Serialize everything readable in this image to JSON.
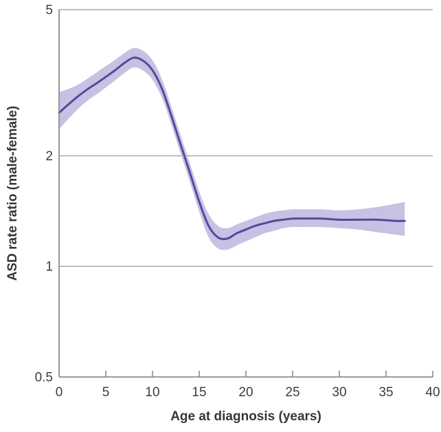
{
  "figure": {
    "background": "#ffffff"
  },
  "chart_data": {
    "type": "line",
    "title": "",
    "xlabel": "Age at diagnosis (years)",
    "ylabel": "ASD rate ratio (male-female)",
    "x_ticks": [
      0,
      5,
      10,
      15,
      20,
      25,
      30,
      35,
      40
    ],
    "x_tick_labels": [
      "0",
      "5",
      "10",
      "15",
      "20",
      "25",
      "30",
      "35",
      "40"
    ],
    "y_ticks": [
      0.5,
      1,
      2,
      5
    ],
    "y_tick_labels": [
      "0.5",
      "1",
      "2",
      "5"
    ],
    "gridline_values": [
      1,
      2,
      5
    ],
    "xlim": [
      0,
      40
    ],
    "ylim": [
      0.5,
      5
    ],
    "y_scale": "log",
    "grid": "horizontal-only",
    "legend": "none",
    "series": [
      {
        "name": "ASD male-female rate ratio (smoothed estimate with confidence band)",
        "x": [
          0,
          1,
          2,
          3,
          4,
          5,
          6,
          7,
          8,
          9,
          10,
          11,
          12,
          13,
          14,
          15,
          16,
          17,
          18,
          19,
          20,
          21,
          22,
          23,
          24,
          25,
          26,
          28,
          30,
          32,
          34,
          36,
          37
        ],
        "y": [
          2.62,
          2.76,
          2.9,
          3.03,
          3.15,
          3.28,
          3.42,
          3.58,
          3.7,
          3.63,
          3.42,
          3.05,
          2.58,
          2.15,
          1.8,
          1.5,
          1.29,
          1.2,
          1.19,
          1.23,
          1.26,
          1.29,
          1.31,
          1.33,
          1.34,
          1.35,
          1.35,
          1.35,
          1.34,
          1.34,
          1.34,
          1.33,
          1.33
        ],
        "ci_lower": [
          2.36,
          2.52,
          2.68,
          2.82,
          2.94,
          3.07,
          3.21,
          3.36,
          3.48,
          3.41,
          3.22,
          2.88,
          2.44,
          2.03,
          1.7,
          1.41,
          1.2,
          1.12,
          1.11,
          1.14,
          1.17,
          1.2,
          1.23,
          1.25,
          1.27,
          1.28,
          1.28,
          1.28,
          1.27,
          1.26,
          1.24,
          1.22,
          1.21
        ],
        "ci_upper": [
          2.98,
          3.04,
          3.12,
          3.24,
          3.37,
          3.51,
          3.65,
          3.81,
          3.93,
          3.86,
          3.64,
          3.24,
          2.73,
          2.28,
          1.91,
          1.6,
          1.39,
          1.29,
          1.27,
          1.3,
          1.33,
          1.36,
          1.39,
          1.41,
          1.42,
          1.43,
          1.43,
          1.43,
          1.42,
          1.43,
          1.45,
          1.48,
          1.5
        ]
      }
    ],
    "colors": {
      "line": "#54499a",
      "band": "#c7c1e3",
      "grid": "#a9a9a9",
      "axis": "#8c8c8c",
      "tick_text": "#3d3d3d",
      "title_text": "#363636"
    }
  }
}
